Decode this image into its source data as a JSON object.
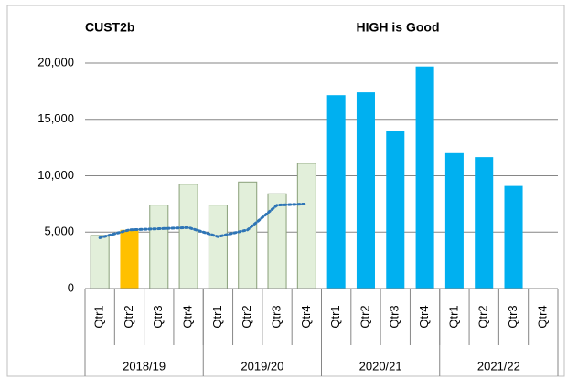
{
  "chart_data": {
    "type": "bar",
    "title": "CUST2b",
    "subtitle": "HIGH is Good",
    "categories": [
      "Qtr1",
      "Qtr2",
      "Qtr3",
      "Qtr4",
      "Qtr1",
      "Qtr2",
      "Qtr3",
      "Qtr4",
      "Qtr1",
      "Qtr2",
      "Qtr3",
      "Qtr4",
      "Qtr1",
      "Qtr2",
      "Qtr3",
      "Qtr4"
    ],
    "groups": [
      "2018/19",
      "2019/20",
      "2020/21",
      "2021/22"
    ],
    "series": [
      {
        "type": "bar",
        "values": [
          4700,
          5200,
          7400,
          9250,
          7400,
          9450,
          8400,
          11100,
          17150,
          17400,
          14000,
          19700,
          12000,
          11650,
          9100,
          null
        ],
        "colors": [
          "#e2efda",
          "#ffc000",
          "#e2efda",
          "#e2efda",
          "#e2efda",
          "#e2efda",
          "#e2efda",
          "#e2efda",
          "#00b0f0",
          "#00b0f0",
          "#00b0f0",
          "#00b0f0",
          "#00b0f0",
          "#00b0f0",
          "#00b0f0",
          "#00b0f0"
        ]
      },
      {
        "type": "line",
        "color": "#2e75b6",
        "dash": "dotted",
        "values": [
          4500,
          5200,
          5300,
          5400,
          4600,
          5200,
          7400,
          7500,
          null,
          null,
          null,
          null,
          null,
          null,
          null,
          null
        ]
      }
    ],
    "ylim": [
      0,
      20000
    ],
    "yticks": [
      0,
      {
        "value": 5000,
        "label": "5,000"
      },
      {
        "value": 10000,
        "label": "10,000"
      },
      {
        "value": 15000,
        "label": "15,000"
      },
      {
        "value": 20000,
        "label": "20,000"
      }
    ],
    "grid": true
  }
}
